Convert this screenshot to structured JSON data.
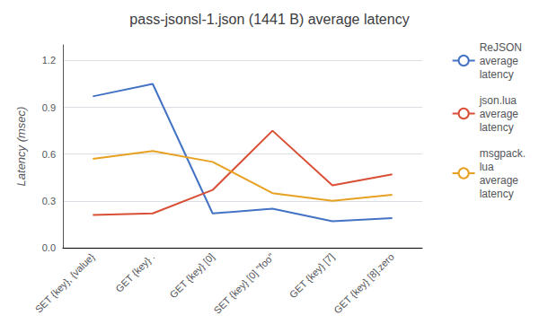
{
  "chart_data": {
    "type": "line",
    "title": "pass-jsonsl-1.json (1441 B) average latency",
    "ylabel": "Latency (msec)",
    "categories": [
      "SET {key}, {value}",
      "GET {key} .",
      "GET {key} [0]",
      "SET {key} [0] \"foo\"",
      "GET {key} [7]",
      "GET {key} [8].zero"
    ],
    "series": [
      {
        "name": "ReJSON\naverage\nlatency",
        "color": "#4472C4",
        "values": [
          0.97,
          1.05,
          0.22,
          0.25,
          0.17,
          0.19
        ]
      },
      {
        "name": "json.lua\naverage\nlatency",
        "color": "#D94F35",
        "values": [
          0.21,
          0.22,
          0.37,
          0.75,
          0.4,
          0.47
        ]
      },
      {
        "name": "msgpack.\nlua\naverage\nlatency",
        "color": "#E8A020",
        "values": [
          0.57,
          0.62,
          0.55,
          0.35,
          0.3,
          0.34
        ]
      }
    ],
    "ylim": [
      0,
      1.3
    ],
    "yticks": [
      {
        "value": 0,
        "label": "0.0"
      },
      0.3,
      0.6,
      0.9,
      1.2
    ],
    "grid": true,
    "legend": "right"
  }
}
